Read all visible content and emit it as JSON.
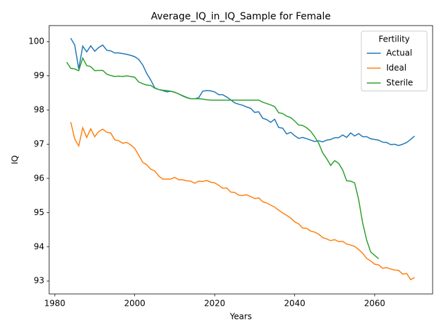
{
  "chart_data": {
    "type": "line",
    "title": "Average_IQ_in_IQ_Sample for Female",
    "x_label": "Years",
    "y_label": "IQ",
    "xlim": [
      1978.6,
      2074.5
    ],
    "xticks": [
      1980,
      2000,
      2020,
      2040,
      2060
    ],
    "ylim": [
      92.62,
      100.47
    ],
    "yticks": [
      93,
      94,
      95,
      96,
      97,
      98,
      99,
      100
    ],
    "grid": false,
    "legend_title": "Fertility",
    "legend_position": "upper right",
    "series": [
      {
        "name": "Actual",
        "color": "#1f77b4",
        "x": [
          1984,
          1985,
          1986,
          1987,
          1988,
          1989,
          1990,
          1991,
          1992,
          1993,
          1994,
          1995,
          1996,
          1997,
          1998,
          1999,
          2000,
          2001,
          2002,
          2003,
          2004,
          2005,
          2006,
          2007,
          2008,
          2009,
          2010,
          2011,
          2012,
          2013,
          2014,
          2015,
          2016,
          2017,
          2018,
          2019,
          2020,
          2021,
          2022,
          2023,
          2024,
          2025,
          2026,
          2027,
          2028,
          2029,
          2030,
          2031,
          2032,
          2033,
          2034,
          2035,
          2036,
          2037,
          2038,
          2039,
          2040,
          2041,
          2042,
          2043,
          2044,
          2045,
          2046,
          2047,
          2048,
          2049,
          2050,
          2051,
          2052,
          2053,
          2054,
          2055,
          2056,
          2057,
          2058,
          2059,
          2060,
          2061,
          2062,
          2063,
          2064,
          2065,
          2066,
          2067,
          2068,
          2069,
          2070
        ],
        "values": [
          100.1,
          99.9,
          99.2,
          99.87,
          99.7,
          99.88,
          99.72,
          99.83,
          99.9,
          99.75,
          99.73,
          99.67,
          99.67,
          99.65,
          99.63,
          99.6,
          99.56,
          99.48,
          99.32,
          99.07,
          98.88,
          98.65,
          98.6,
          98.57,
          98.53,
          98.55,
          98.52,
          98.47,
          98.42,
          98.37,
          98.33,
          98.33,
          98.36,
          98.55,
          98.57,
          98.56,
          98.53,
          98.45,
          98.45,
          98.38,
          98.3,
          98.21,
          98.17,
          98.14,
          98.09,
          98.05,
          97.93,
          97.95,
          97.76,
          97.72,
          97.64,
          97.73,
          97.49,
          97.47,
          97.3,
          97.35,
          97.25,
          97.17,
          97.2,
          97.16,
          97.12,
          97.08,
          97.1,
          97.07,
          97.12,
          97.14,
          97.19,
          97.19,
          97.27,
          97.2,
          97.33,
          97.24,
          97.31,
          97.22,
          97.22,
          97.16,
          97.14,
          97.12,
          97.06,
          97.05,
          96.99,
          97.0,
          96.96,
          97.0,
          97.05,
          97.14,
          97.24
        ]
      },
      {
        "name": "Ideal",
        "color": "#ff7f0e",
        "x": [
          1984,
          1985,
          1986,
          1987,
          1988,
          1989,
          1990,
          1991,
          1992,
          1993,
          1994,
          1995,
          1996,
          1997,
          1998,
          1999,
          2000,
          2001,
          2002,
          2003,
          2004,
          2005,
          2006,
          2007,
          2008,
          2009,
          2010,
          2011,
          2012,
          2013,
          2014,
          2015,
          2016,
          2017,
          2018,
          2019,
          2020,
          2021,
          2022,
          2023,
          2024,
          2025,
          2026,
          2027,
          2028,
          2029,
          2030,
          2031,
          2032,
          2033,
          2034,
          2035,
          2036,
          2037,
          2038,
          2039,
          2040,
          2041,
          2042,
          2043,
          2044,
          2045,
          2046,
          2047,
          2048,
          2049,
          2050,
          2051,
          2052,
          2053,
          2054,
          2055,
          2056,
          2057,
          2058,
          2059,
          2060,
          2061,
          2062,
          2063,
          2064,
          2065,
          2066,
          2067,
          2068,
          2069,
          2070
        ],
        "values": [
          97.65,
          97.15,
          96.95,
          97.48,
          97.2,
          97.45,
          97.22,
          97.37,
          97.44,
          97.35,
          97.33,
          97.13,
          97.1,
          97.03,
          97.05,
          96.98,
          96.88,
          96.68,
          96.47,
          96.4,
          96.27,
          96.22,
          96.07,
          95.98,
          95.98,
          95.98,
          96.03,
          95.96,
          95.96,
          95.93,
          95.92,
          95.86,
          95.92,
          95.91,
          95.94,
          95.89,
          95.87,
          95.8,
          95.71,
          95.72,
          95.6,
          95.59,
          95.51,
          95.5,
          95.52,
          95.47,
          95.41,
          95.43,
          95.32,
          95.28,
          95.22,
          95.16,
          95.07,
          94.99,
          94.92,
          94.84,
          94.73,
          94.67,
          94.55,
          94.54,
          94.46,
          94.43,
          94.37,
          94.27,
          94.23,
          94.18,
          94.21,
          94.15,
          94.16,
          94.08,
          94.05,
          94.01,
          93.92,
          93.81,
          93.66,
          93.59,
          93.49,
          93.47,
          93.37,
          93.39,
          93.35,
          93.32,
          93.31,
          93.2,
          93.22,
          93.04,
          93.1
        ]
      },
      {
        "name": "Sterile",
        "color": "#2ca02c",
        "x": [
          1983,
          1984,
          1985,
          1986,
          1987,
          1988,
          1989,
          1990,
          1991,
          1992,
          1993,
          1994,
          1995,
          1996,
          1997,
          1998,
          1999,
          2000,
          2001,
          2002,
          2003,
          2004,
          2005,
          2006,
          2007,
          2008,
          2009,
          2010,
          2011,
          2012,
          2013,
          2014,
          2015,
          2016,
          2017,
          2018,
          2019,
          2020,
          2021,
          2022,
          2023,
          2024,
          2025,
          2026,
          2027,
          2028,
          2029,
          2030,
          2031,
          2032,
          2033,
          2034,
          2035,
          2036,
          2037,
          2038,
          2039,
          2040,
          2041,
          2042,
          2043,
          2044,
          2045,
          2046,
          2047,
          2048,
          2049,
          2050,
          2051,
          2052,
          2053,
          2054,
          2055,
          2056,
          2057,
          2058,
          2059,
          2060,
          2061
        ],
        "values": [
          99.4,
          99.22,
          99.2,
          99.15,
          99.52,
          99.3,
          99.27,
          99.15,
          99.16,
          99.16,
          99.05,
          99.01,
          98.98,
          98.99,
          98.98,
          99.0,
          98.98,
          98.96,
          98.82,
          98.77,
          98.73,
          98.72,
          98.64,
          98.6,
          98.58,
          98.57,
          98.55,
          98.52,
          98.47,
          98.41,
          98.36,
          98.33,
          98.33,
          98.33,
          98.32,
          98.3,
          98.29,
          98.29,
          98.29,
          98.29,
          98.29,
          98.29,
          98.29,
          98.29,
          98.29,
          98.29,
          98.29,
          98.29,
          98.29,
          98.23,
          98.19,
          98.15,
          98.1,
          97.92,
          97.9,
          97.82,
          97.78,
          97.68,
          97.56,
          97.55,
          97.48,
          97.38,
          97.22,
          97.03,
          96.75,
          96.58,
          96.38,
          96.52,
          96.44,
          96.25,
          95.93,
          95.92,
          95.87,
          95.38,
          94.7,
          94.2,
          93.85,
          93.75,
          93.65
        ]
      }
    ]
  }
}
